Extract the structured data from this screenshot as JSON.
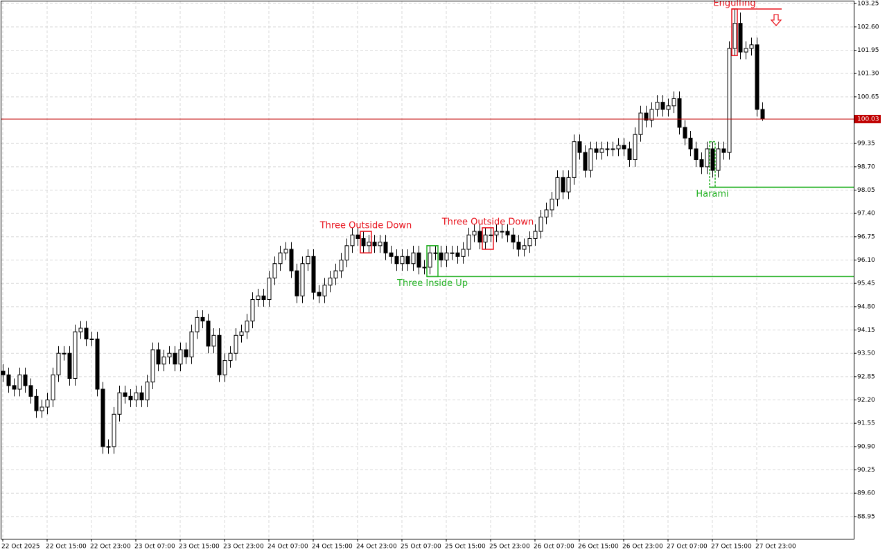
{
  "chart_data": {
    "type": "candlestick",
    "categories": [
      "22 Oct 2025",
      null,
      null,
      null,
      null,
      null,
      null,
      null,
      "22 Oct 15:00",
      null,
      null,
      null,
      null,
      null,
      null,
      null,
      "22 Oct 23:00",
      null,
      null,
      null,
      null,
      null,
      null,
      null,
      "23 Oct 07:00",
      null,
      null,
      null,
      null,
      null,
      null,
      null,
      "23 Oct 15:00",
      null,
      null,
      null,
      null,
      null,
      null,
      null,
      "23 Oct 23:00",
      null,
      null,
      null,
      null,
      null,
      null,
      null,
      "24 Oct 07:00",
      null,
      null,
      null,
      null,
      null,
      null,
      null,
      "24 Oct 15:00",
      null,
      null,
      null,
      null,
      null,
      null,
      null,
      "24 Oct 23:00",
      null,
      null,
      null,
      null,
      null,
      null,
      null,
      "25 Oct 07:00",
      null,
      null,
      null,
      null,
      null,
      null,
      null,
      "25 Oct 15:00",
      null,
      null,
      null,
      null,
      null,
      null,
      null,
      "25 Oct 23:00",
      null,
      null,
      null,
      null,
      null,
      null,
      null,
      "26 Oct 07:00",
      null,
      null,
      null,
      null,
      null,
      null,
      null,
      "26 Oct 15:00",
      null,
      null,
      null,
      null,
      null,
      null,
      null,
      "26 Oct 23:00",
      null,
      null,
      null,
      null,
      null,
      null,
      null,
      "27 Oct 07:00",
      null,
      null,
      null,
      null,
      null,
      null,
      null,
      "27 Oct 15:00",
      null,
      null,
      null,
      null,
      null,
      null,
      null,
      "27 Oct 23:00",
      null
    ],
    "open": [
      93.0,
      92.9,
      92.6,
      92.5,
      92.9,
      92.6,
      92.3,
      91.9,
      92.0,
      92.2,
      92.9,
      93.5,
      93.5,
      92.8,
      94.1,
      94.2,
      93.9,
      93.9,
      92.5,
      90.9,
      90.9,
      91.8,
      92.4,
      92.3,
      92.2,
      92.4,
      92.2,
      92.7,
      93.6,
      93.2,
      93.4,
      93.5,
      93.2,
      93.6,
      93.4,
      94.1,
      94.5,
      94.4,
      93.7,
      94.0,
      92.9,
      93.3,
      93.5,
      94.0,
      94.1,
      94.4,
      95.0,
      95.1,
      95.0,
      95.6,
      96.0,
      96.3,
      96.4,
      95.8,
      95.1,
      96.0,
      96.2,
      95.2,
      95.1,
      95.4,
      95.6,
      95.8,
      96.1,
      96.5,
      96.8,
      96.7,
      96.5,
      96.6,
      96.5,
      96.6,
      96.3,
      96.2,
      96.0,
      96.2,
      96.0,
      96.3,
      95.9,
      95.9,
      96.3,
      96.3,
      96.1,
      96.3,
      96.3,
      96.2,
      96.4,
      96.8,
      96.9,
      96.6,
      96.8,
      96.8,
      96.9,
      96.9,
      96.8,
      96.6,
      96.4,
      96.5,
      96.7,
      96.9,
      97.3,
      97.5,
      97.8,
      98.4,
      98.0,
      98.4,
      99.4,
      99.1,
      98.6,
      99.2,
      99.1,
      99.2,
      99.2,
      99.2,
      99.3,
      99.2,
      98.9,
      99.6,
      100.2,
      100.0,
      100.3,
      100.5,
      100.3,
      100.4,
      100.6,
      99.8,
      99.5,
      99.2,
      98.9,
      98.7,
      99.2,
      98.6,
      99.2,
      99.1,
      102.0,
      102.7,
      101.9,
      102.0,
      102.1,
      100.3
    ],
    "high": [
      93.2,
      93.1,
      92.8,
      93.1,
      93.1,
      92.8,
      92.5,
      92.2,
      92.4,
      93.1,
      93.7,
      93.7,
      93.7,
      94.3,
      94.4,
      94.4,
      94.1,
      94.1,
      92.7,
      91.1,
      92.0,
      92.6,
      92.6,
      92.5,
      92.6,
      92.6,
      92.9,
      93.8,
      93.8,
      93.6,
      93.7,
      93.7,
      93.8,
      93.8,
      94.3,
      94.7,
      94.7,
      94.6,
      94.2,
      94.2,
      93.5,
      93.7,
      94.2,
      94.3,
      94.6,
      95.2,
      95.3,
      95.3,
      95.8,
      96.2,
      96.5,
      96.6,
      96.6,
      96.0,
      96.2,
      96.4,
      96.4,
      95.4,
      95.6,
      95.8,
      96.0,
      96.3,
      96.7,
      97.0,
      97.0,
      96.9,
      96.8,
      96.8,
      96.8,
      96.8,
      96.5,
      96.4,
      96.4,
      96.4,
      96.5,
      96.5,
      96.1,
      96.5,
      96.5,
      96.5,
      96.5,
      96.5,
      96.5,
      96.6,
      97.0,
      97.1,
      97.1,
      97.0,
      97.0,
      97.1,
      97.1,
      97.1,
      97.0,
      96.8,
      96.7,
      96.9,
      97.1,
      97.5,
      97.7,
      98.0,
      98.6,
      98.6,
      98.6,
      99.6,
      99.6,
      99.3,
      99.4,
      99.4,
      99.4,
      99.4,
      99.4,
      99.5,
      99.5,
      99.4,
      99.8,
      100.4,
      100.4,
      100.5,
      100.7,
      100.7,
      100.6,
      100.8,
      100.8,
      100.0,
      99.7,
      99.4,
      99.1,
      99.4,
      99.4,
      99.4,
      99.4,
      102.2,
      103.1,
      103.0,
      102.2,
      102.3,
      102.3,
      100.5
    ],
    "low": [
      92.7,
      92.4,
      92.3,
      92.3,
      92.4,
      92.1,
      91.7,
      91.7,
      91.8,
      92.0,
      92.7,
      93.3,
      92.6,
      92.6,
      93.9,
      93.7,
      93.7,
      92.3,
      90.7,
      90.7,
      90.7,
      91.6,
      92.1,
      92.0,
      92.0,
      92.0,
      92.0,
      92.5,
      93.0,
      93.0,
      93.2,
      93.0,
      93.0,
      93.2,
      93.2,
      93.9,
      94.2,
      93.5,
      93.5,
      92.7,
      92.7,
      93.1,
      93.3,
      93.8,
      93.9,
      94.2,
      94.8,
      94.8,
      94.8,
      95.4,
      95.8,
      96.1,
      95.6,
      94.9,
      94.9,
      95.8,
      95.0,
      94.9,
      94.9,
      95.2,
      95.4,
      95.6,
      95.9,
      96.3,
      96.5,
      96.3,
      96.3,
      96.3,
      96.3,
      96.1,
      96.0,
      95.8,
      95.8,
      95.8,
      95.8,
      95.7,
      95.7,
      95.7,
      96.1,
      95.9,
      95.9,
      96.1,
      96.0,
      96.0,
      96.2,
      96.6,
      96.4,
      96.4,
      96.6,
      96.6,
      96.7,
      96.6,
      96.4,
      96.2,
      96.2,
      96.3,
      96.5,
      96.7,
      97.1,
      97.3,
      97.6,
      97.8,
      97.8,
      98.2,
      98.9,
      98.4,
      98.4,
      98.9,
      98.9,
      99.0,
      99.0,
      99.0,
      99.0,
      98.7,
      98.7,
      99.4,
      99.8,
      99.8,
      100.1,
      100.1,
      100.1,
      100.2,
      99.6,
      99.3,
      99.0,
      98.7,
      98.5,
      98.5,
      98.4,
      98.4,
      98.9,
      98.9,
      101.8,
      101.7,
      101.7,
      101.8,
      100.1,
      99.98
    ],
    "close": [
      92.9,
      92.6,
      92.5,
      92.9,
      92.6,
      92.3,
      91.9,
      92.0,
      92.2,
      92.9,
      93.5,
      93.5,
      92.8,
      94.1,
      94.2,
      93.9,
      93.9,
      92.5,
      90.9,
      90.9,
      91.8,
      92.4,
      92.3,
      92.2,
      92.4,
      92.2,
      92.7,
      93.6,
      93.2,
      93.4,
      93.5,
      93.2,
      93.6,
      93.4,
      94.1,
      94.5,
      94.4,
      93.7,
      94.0,
      92.9,
      93.3,
      93.5,
      94.0,
      94.1,
      94.4,
      95.0,
      95.1,
      95.0,
      95.6,
      96.0,
      96.3,
      96.4,
      95.8,
      95.1,
      96.0,
      96.2,
      95.2,
      95.1,
      95.4,
      95.6,
      95.8,
      96.1,
      96.5,
      96.8,
      96.7,
      96.5,
      96.6,
      96.5,
      96.6,
      96.3,
      96.2,
      96.0,
      96.2,
      96.0,
      96.3,
      95.9,
      95.9,
      96.3,
      96.3,
      96.1,
      96.3,
      96.3,
      96.2,
      96.4,
      96.8,
      96.9,
      96.6,
      96.8,
      96.8,
      96.9,
      96.9,
      96.8,
      96.6,
      96.4,
      96.5,
      96.7,
      96.9,
      97.3,
      97.5,
      97.8,
      98.4,
      98.0,
      98.4,
      99.4,
      99.1,
      98.6,
      99.2,
      99.1,
      99.2,
      99.2,
      99.2,
      99.3,
      99.2,
      98.9,
      99.6,
      100.2,
      100.0,
      100.3,
      100.5,
      100.3,
      100.4,
      100.6,
      99.8,
      99.5,
      99.2,
      98.9,
      98.7,
      99.2,
      98.6,
      99.2,
      99.1,
      102.0,
      102.7,
      101.9,
      102.0,
      102.1,
      100.3,
      100.03
    ],
    "last_price": 100.03,
    "last_price_color": "#c00000",
    "ylim": [
      88.33,
      103.35
    ],
    "yticks": [
      103.25,
      {
        "value": 102.6,
        "label": "102.60"
      },
      101.95,
      {
        "value": 101.3,
        "label": "101.30"
      },
      100.65,
      99.35,
      {
        "value": 98.7,
        "label": "98.70"
      },
      {
        "value": 98.05,
        "label": "98.05"
      },
      {
        "value": 97.4,
        "label": "97.40"
      },
      96.75,
      {
        "value": 96.1,
        "label": "96.10"
      },
      95.45,
      {
        "value": 94.8,
        "label": "94.80"
      },
      94.15,
      {
        "value": 93.5,
        "label": "93.50"
      },
      92.85,
      {
        "value": 92.2,
        "label": "92.20"
      },
      91.55,
      {
        "value": 90.9,
        "label": "90.90"
      },
      90.25,
      {
        "value": 89.6,
        "label": "89.60"
      },
      88.95
    ],
    "grid": true,
    "patterns": [
      {
        "label": "Three Outside Down",
        "color": "#e8101a",
        "candles": [
          65,
          66
        ]
      },
      {
        "label": "Three Inside Up",
        "color": "#22b022",
        "candles": [
          77,
          78
        ],
        "level": 95.64,
        "extend": true
      },
      {
        "label": "Three Outside Down",
        "color": "#e8101a",
        "candles": [
          87,
          88
        ]
      },
      {
        "label": "Harami",
        "color": "#22b022",
        "candles": [
          128,
          128
        ],
        "level": 98.13,
        "extend": true,
        "dashed": true
      },
      {
        "label": "Engulfing",
        "color": "#e8101a",
        "candles": [
          132,
          132
        ],
        "level": 103.1,
        "extend": false,
        "arrow": "down"
      }
    ]
  }
}
